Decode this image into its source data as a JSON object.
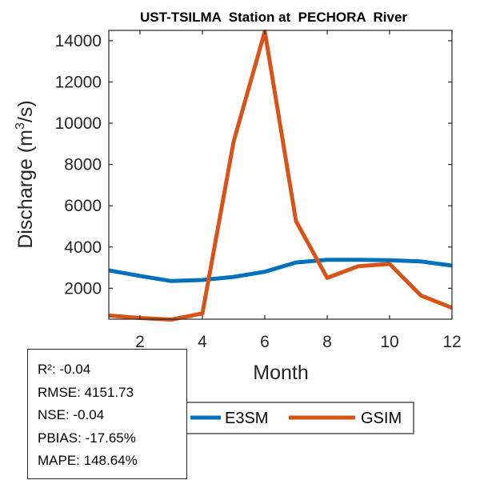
{
  "chart_data": {
    "type": "line",
    "title": "UST-TSILMA  Station at  PECHORA  River",
    "xlabel": "Month",
    "ylabel": "Discharge (m³/s)",
    "ylabel_base": "Discharge (m",
    "ylabel_sup": "3",
    "ylabel_tail": "/s)",
    "xlim": [
      1,
      12
    ],
    "ylim": [
      500,
      14500
    ],
    "xticks": [
      2,
      4,
      6,
      8,
      10,
      12
    ],
    "yticks": [
      2000,
      4000,
      6000,
      8000,
      10000,
      12000,
      14000
    ],
    "x": [
      1,
      2,
      3,
      4,
      5,
      6,
      7,
      8,
      9,
      10,
      11,
      12
    ],
    "series": [
      {
        "name": "E3SM",
        "color": "#0072BD",
        "values": [
          2870,
          2600,
          2350,
          2400,
          2550,
          2800,
          3250,
          3380,
          3380,
          3360,
          3300,
          3100
        ]
      },
      {
        "name": "GSIM",
        "color": "#D95319",
        "values": [
          680,
          560,
          480,
          780,
          9100,
          14450,
          5250,
          2500,
          3070,
          3180,
          1650,
          1050
        ]
      }
    ],
    "grid": false,
    "legend_position": "bottom-center"
  },
  "stats": [
    {
      "label": "R²:",
      "value": "-0.04"
    },
    {
      "label": "RMSE:",
      "value": "4151.73"
    },
    {
      "label": "NSE:",
      "value": "-0.04"
    },
    {
      "label": "PBIAS:",
      "value": "-17.65%"
    },
    {
      "label": "MAPE:",
      "value": "148.64%"
    }
  ]
}
